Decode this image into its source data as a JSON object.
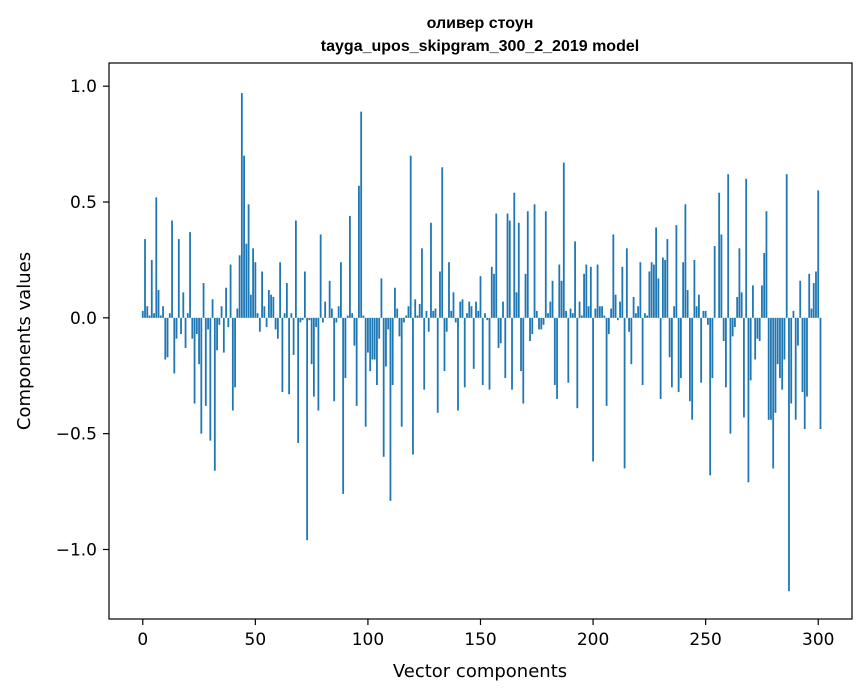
{
  "chart_data": {
    "type": "bar",
    "title": [
      "оливер стоун",
      "tayga_upos_skipgram_300_2_2019 model"
    ],
    "xlabel": "Vector components",
    "ylabel": "Components values",
    "xlim": [
      -15,
      315
    ],
    "ylim": [
      -1.3,
      1.1
    ],
    "xticks": [
      0,
      50,
      100,
      150,
      200,
      250,
      300
    ],
    "xtick_labels": [
      "0",
      "50",
      "100",
      "150",
      "200",
      "250",
      "300"
    ],
    "yticks": [
      -1.0,
      -0.5,
      0.0,
      0.5,
      1.0
    ],
    "ytick_labels": [
      "−1.0",
      "−0.5",
      "0.0",
      "0.5",
      "1.0"
    ],
    "bar_color": "#1f77b4",
    "x_start": 0,
    "values": [
      0.03,
      0.34,
      0.05,
      0.01,
      0.25,
      0.02,
      0.52,
      0.12,
      0.01,
      0.05,
      -0.18,
      -0.17,
      0.02,
      0.42,
      -0.24,
      -0.09,
      0.34,
      -0.07,
      0.11,
      -0.13,
      0.02,
      0.37,
      -0.09,
      -0.37,
      -0.07,
      -0.2,
      -0.5,
      0.15,
      -0.38,
      -0.05,
      -0.53,
      0.08,
      -0.66,
      -0.14,
      -0.03,
      0.05,
      -0.15,
      0.13,
      -0.04,
      0.23,
      -0.4,
      -0.3,
      0.04,
      0.27,
      0.97,
      0.7,
      0.32,
      0.49,
      0.1,
      0.3,
      0.24,
      0.02,
      -0.06,
      0.2,
      0.05,
      -0.04,
      0.12,
      0.1,
      0.09,
      -0.05,
      -0.09,
      0.24,
      -0.32,
      0.02,
      0.15,
      -0.33,
      0.02,
      -0.16,
      0.42,
      -0.54,
      -0.02,
      -0.01,
      0.2,
      -0.96,
      -0.01,
      -0.2,
      -0.34,
      -0.04,
      -0.4,
      0.36,
      -0.02,
      0.07,
      0.0,
      0.16,
      0.04,
      -0.36,
      -0.02,
      0.05,
      0.24,
      -0.76,
      -0.26,
      0.01,
      0.44,
      0.02,
      -0.12,
      -0.38,
      0.57,
      0.89,
      0.01,
      -0.47,
      -0.15,
      -0.23,
      -0.18,
      -0.18,
      -0.29,
      -0.09,
      0.17,
      -0.6,
      -0.21,
      -0.05,
      -0.79,
      -0.29,
      0.13,
      0.04,
      -0.08,
      -0.47,
      -0.02,
      0.01,
      0.05,
      0.7,
      -0.59,
      0.08,
      0.01,
      0.06,
      0.3,
      -0.31,
      0.03,
      -0.06,
      0.41,
      0.03,
      0.04,
      -0.41,
      0.2,
      0.65,
      -0.23,
      -0.06,
      0.24,
      0.03,
      0.11,
      -0.02,
      -0.4,
      0.07,
      0.08,
      -0.3,
      0.02,
      0.07,
      0.05,
      -0.22,
      0.07,
      0.03,
      0.18,
      -0.29,
      0.02,
      -0.01,
      -0.31,
      0.22,
      0.19,
      0.45,
      -0.13,
      -0.11,
      0.07,
      -0.26,
      0.45,
      0.42,
      -0.31,
      0.54,
      0.11,
      0.41,
      -0.23,
      -0.37,
      0.19,
      0.46,
      -0.1,
      -0.07,
      0.49,
      0.03,
      -0.05,
      -0.05,
      -0.03,
      0.46,
      0.02,
      0.07,
      0.16,
      -0.29,
      -0.35,
      0.23,
      0.16,
      0.67,
      0.03,
      -0.28,
      0.04,
      0.02,
      0.33,
      -0.39,
      0.07,
      0.01,
      0.19,
      0.23,
      0.05,
      0.22,
      -0.62,
      0.04,
      0.23,
      0.05,
      0.05,
      0.01,
      -0.38,
      -0.07,
      0.04,
      0.36,
      0.1,
      -0.01,
      0.07,
      0.22,
      -0.65,
      0.3,
      -0.06,
      -0.2,
      0.09,
      0.02,
      0.05,
      0.24,
      -0.29,
      0.02,
      0.01,
      0.2,
      0.24,
      0.23,
      0.39,
      0.17,
      -0.35,
      0.26,
      0.25,
      0.34,
      -0.17,
      -0.3,
      0.05,
      0.4,
      -0.32,
      -0.26,
      0.24,
      0.49,
      0.12,
      -0.36,
      -0.44,
      0.25,
      0.05,
      0.1,
      -0.28,
      0.03,
      0.03,
      -0.03,
      -0.68,
      -0.26,
      0.31,
      0.0,
      0.54,
      0.36,
      -0.1,
      -0.3,
      0.62,
      -0.5,
      -0.08,
      -0.04,
      0.09,
      0.3,
      0.11,
      -0.43,
      0.6,
      -0.71,
      -0.27,
      0.14,
      -0.18,
      -0.09,
      -0.1,
      0.14,
      0.28,
      0.46,
      -0.44,
      -0.44,
      -0.65,
      -0.41,
      -0.2,
      -0.26,
      -0.31,
      -0.18,
      0.62,
      -1.18,
      -0.37,
      0.03,
      -0.44,
      -0.12,
      0.16,
      -0.32,
      -0.48,
      -0.34,
      0.19,
      0.04,
      0.15,
      0.2,
      0.55,
      -0.48
    ]
  }
}
